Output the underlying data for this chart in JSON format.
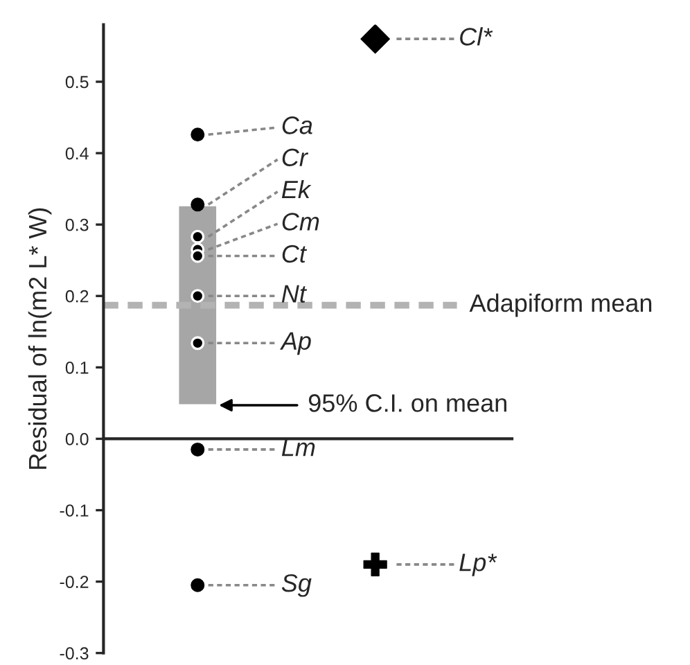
{
  "chart_data": {
    "type": "scatter",
    "ylabel": "Residual of ln(m2 L* W)",
    "categories": [
      null,
      null
    ],
    "ylim": [
      -0.3,
      0.58
    ],
    "yticks": [
      {
        "value": -0.3,
        "label": "-0.3"
      },
      {
        "value": -0.2,
        "label": "-0.2"
      },
      {
        "value": -0.1,
        "label": "-0.1"
      },
      {
        "value": 0,
        "label": "0.0"
      },
      0.1,
      0.2,
      0.3,
      0.4,
      0.5
    ],
    "marker": "circle",
    "series": [
      {
        "name": "Ca",
        "color": "#000000",
        "values": [
          0.426,
          null
        ]
      },
      {
        "name": "Cr",
        "color": "#000000",
        "values": [
          0.328,
          null
        ]
      },
      {
        "name": "Ek",
        "color": "#000000",
        "values": [
          0.283,
          null
        ]
      },
      {
        "name": "Cm",
        "color": "#000000",
        "values": [
          0.265,
          null
        ]
      },
      {
        "name": "Ct",
        "color": "#000000",
        "values": [
          0.256,
          null
        ]
      },
      {
        "name": "Nt",
        "color": "#000000",
        "values": [
          0.2,
          null
        ]
      },
      {
        "name": "Ap",
        "color": "#000000",
        "values": [
          0.134,
          null
        ]
      },
      {
        "name": "Lm",
        "color": "#000000",
        "values": [
          -0.015,
          null
        ]
      },
      {
        "name": "Sg",
        "color": "#000000",
        "values": [
          -0.205,
          null
        ]
      },
      {
        "name": "Cl*",
        "color": "#000000",
        "marker": "diamond",
        "values": [
          null,
          0.56
        ]
      },
      {
        "name": "Lp*",
        "color": "#000000",
        "marker": "cross",
        "values": [
          null,
          -0.176
        ]
      }
    ],
    "bands": [
      {
        "axis": "y",
        "from": 0.047,
        "to": 0.327,
        "label": "95% C.I. on mean",
        "color": "#a6a6a6"
      }
    ],
    "ref_lines": [
      {
        "axis": "y",
        "value": 0.187,
        "label": "Adapiform mean",
        "color": "#b3b3b3",
        "line_style": "dashed"
      }
    ],
    "legend": false
  }
}
